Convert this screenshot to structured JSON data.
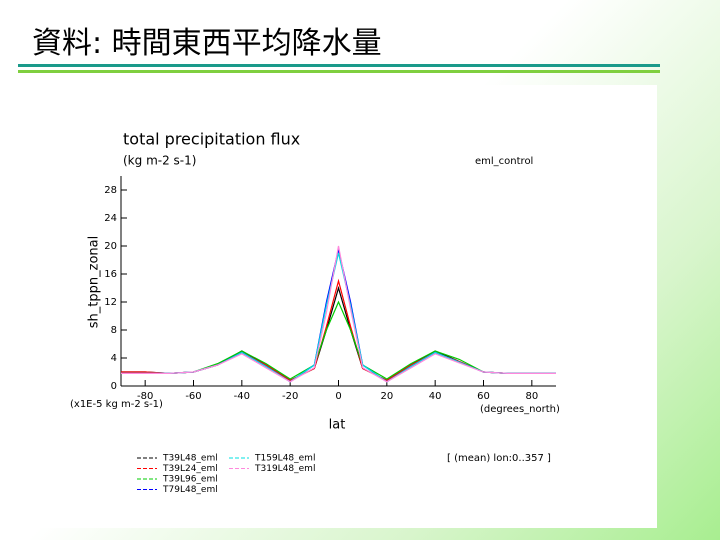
{
  "slide": {
    "title": "資料: 時間東西平均降水量"
  },
  "chart_data": {
    "type": "line",
    "title": "total precipitation flux",
    "subtitle": "(kg m-2 s-1)",
    "run_label": "eml_control",
    "y_label": "sh_tppn_zonal",
    "x_label": "lat",
    "y_units": "(x1E-5 kg m-2 s-1)",
    "x_units": "(degrees_north)",
    "note": "[ (mean) lon:0..357 ]",
    "x": [
      -90,
      -80,
      -70,
      -60,
      -50,
      -40,
      -30,
      -20,
      -10,
      -5,
      0,
      5,
      10,
      20,
      30,
      40,
      50,
      60,
      70,
      80,
      90
    ],
    "series": [
      {
        "name": "T39L48_eml",
        "color": "#000000",
        "values": [
          2,
          2,
          1.8,
          2,
          3,
          5,
          3,
          0.8,
          2.5,
          8,
          14,
          8,
          2.5,
          0.8,
          3,
          5,
          3.5,
          2,
          1.8,
          1.8,
          1.8
        ]
      },
      {
        "name": "T39L24_eml",
        "color": "#ff0000",
        "values": [
          2,
          2,
          1.8,
          2,
          3,
          4.8,
          3,
          0.8,
          2.5,
          8.5,
          15,
          8.5,
          2.5,
          0.8,
          3,
          4.8,
          3.5,
          2,
          1.8,
          1.8,
          1.8
        ]
      },
      {
        "name": "T39L96_eml",
        "color": "#00cc00",
        "values": [
          1.8,
          1.8,
          1.8,
          2,
          3.2,
          5,
          3.2,
          1,
          3,
          8,
          12,
          8,
          3,
          1,
          3.2,
          5,
          3.8,
          2,
          1.8,
          1.8,
          1.8
        ]
      },
      {
        "name": "T79L48_eml",
        "color": "#0000ff",
        "values": [
          1.8,
          1.8,
          1.8,
          2,
          3,
          4.8,
          2.8,
          0.6,
          3,
          12,
          19.5,
          12,
          3,
          0.6,
          2.8,
          4.8,
          3.4,
          2,
          1.8,
          1.8,
          1.8
        ]
      },
      {
        "name": "T159L48_eml",
        "color": "#00e0e0",
        "values": [
          1.8,
          1.8,
          1.8,
          2,
          3,
          4.8,
          2.8,
          0.6,
          3,
          11.5,
          19,
          11.5,
          3,
          0.6,
          2.8,
          4.8,
          3.4,
          2,
          1.8,
          1.8,
          1.8
        ]
      },
      {
        "name": "T319L48_eml",
        "color": "#ff88dd",
        "values": [
          1.8,
          1.8,
          1.8,
          2,
          3,
          4.6,
          2.6,
          0.6,
          2.6,
          10.5,
          20,
          11,
          2.6,
          0.6,
          2.6,
          4.6,
          3.3,
          2,
          1.8,
          1.8,
          1.8
        ]
      }
    ],
    "xlim": [
      -90,
      90
    ],
    "ylim": [
      0,
      30
    ],
    "xticks": [
      -80,
      -60,
      -40,
      -20,
      0,
      20,
      40,
      60,
      80
    ],
    "yticks": [
      0,
      4,
      8,
      12,
      16,
      20,
      24,
      28
    ]
  }
}
